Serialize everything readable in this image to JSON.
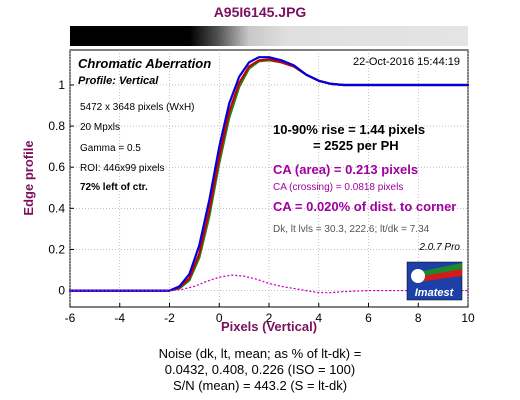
{
  "window_title": "A95I6145.JPG",
  "chart_data": {
    "type": "line",
    "title": "Chromatic Aberration",
    "subtitle": "Profile: Vertical",
    "timestamp": "22-Oct-2016 15:44:19",
    "xlabel": "Pixels (Vertical)",
    "ylabel": "Edge profile",
    "xlim": [
      -6,
      10
    ],
    "ylim": [
      -0.08,
      1.17
    ],
    "xticks": [
      -6,
      -4,
      -2,
      0,
      2,
      4,
      6,
      8,
      10
    ],
    "yticks": [
      0,
      0.2,
      0.4,
      0.6,
      0.8,
      1
    ],
    "grid": true,
    "series": [
      {
        "color": "#1a8a1a",
        "style": "solid",
        "x": [
          -6,
          -3,
          -2,
          -1.6,
          -1.2,
          -0.8,
          -0.4,
          0,
          0.4,
          0.8,
          1.2,
          1.6,
          2,
          2.5,
          3,
          3.5,
          4,
          4.5,
          5,
          6,
          7,
          8,
          10
        ],
        "y": [
          0.0,
          0.0,
          0.0,
          0.01,
          0.05,
          0.16,
          0.36,
          0.62,
          0.84,
          0.99,
          1.08,
          1.115,
          1.12,
          1.11,
          1.09,
          1.05,
          1.02,
          1.005,
          1.0,
          1.0,
          1.0,
          1.0,
          1.0
        ]
      },
      {
        "color": "#cc0000",
        "style": "solid",
        "x": [
          -6,
          -3,
          -2,
          -1.6,
          -1.2,
          -0.8,
          -0.4,
          0,
          0.4,
          0.8,
          1.2,
          1.6,
          2,
          2.5,
          3,
          3.5,
          4,
          4.5,
          5,
          6,
          7,
          8,
          10
        ],
        "y": [
          0.0,
          0.0,
          0.0,
          0.015,
          0.06,
          0.18,
          0.39,
          0.65,
          0.87,
          1.01,
          1.09,
          1.12,
          1.125,
          1.11,
          1.09,
          1.05,
          1.02,
          1.005,
          1.0,
          1.0,
          1.0,
          1.0,
          1.0
        ]
      },
      {
        "color": "#0000dd",
        "style": "solid",
        "x": [
          -6,
          -3,
          -2,
          -1.6,
          -1.2,
          -0.8,
          -0.4,
          0,
          0.4,
          0.8,
          1.2,
          1.6,
          2,
          2.5,
          3,
          3.5,
          4,
          4.5,
          5,
          6,
          7,
          8,
          10
        ],
        "y": [
          0.0,
          0.0,
          0.0,
          0.02,
          0.08,
          0.22,
          0.44,
          0.7,
          0.91,
          1.04,
          1.11,
          1.135,
          1.135,
          1.12,
          1.095,
          1.05,
          1.02,
          1.005,
          1.0,
          1.0,
          1.0,
          1.0,
          1.0
        ]
      },
      {
        "color": "#cc00cc",
        "style": "dotted",
        "x": [
          -6,
          -3,
          -2,
          -1.5,
          -1,
          -0.5,
          0,
          0.5,
          1,
          1.5,
          2,
          2.5,
          3,
          3.5,
          4,
          4.5,
          5,
          6,
          7,
          8,
          10
        ],
        "y": [
          0.0,
          0.0,
          0.0,
          0.005,
          0.02,
          0.045,
          0.065,
          0.075,
          0.07,
          0.055,
          0.035,
          0.02,
          0.01,
          0.0,
          -0.01,
          -0.01,
          -0.005,
          0.0,
          0.0,
          0.0,
          0.0
        ]
      }
    ],
    "annotations": {
      "left": [
        "5472 x 3648 pixels (WxH)",
        "20 Mpxls",
        "Gamma = 0.5",
        "ROI: 446x99 pixels",
        "72% left of ctr."
      ],
      "rise_line1": "10-90% rise = 1.44 pixels",
      "rise_line2": "= 2525 per PH",
      "ca_area": "CA (area) = 0.213 pixels",
      "ca_crossing": "CA (crossing) = 0.0818 pixels",
      "ca_percent": "CA = 0.020% of dist. to corner",
      "levels": "Dk, lt lvls = 30.3, 222.6;   lt/dk = 7.34",
      "version": "2.0.7  Pro",
      "logo_text": "Imatest"
    }
  },
  "noise": {
    "line1": "Noise (dk, lt, mean; as % of lt-dk) =",
    "line2": "0.0432,  0.408,  0.226  (ISO =  100)",
    "line3": "S/N (mean) = 443.2  (S = lt-dk)"
  }
}
